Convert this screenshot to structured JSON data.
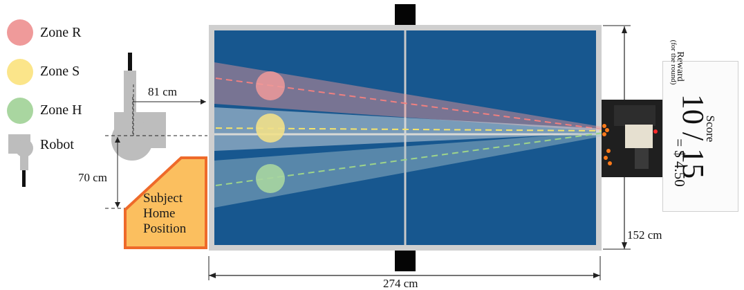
{
  "legend": {
    "items": [
      {
        "label": "Zone R",
        "color": "#ef9a9a"
      },
      {
        "label": "Zone S",
        "color": "#fbe58a"
      },
      {
        "label": "Zone H",
        "color": "#a9d6a0"
      },
      {
        "label": "Robot",
        "icon": "robot-icon"
      }
    ]
  },
  "dimensions": {
    "table_length": "274 cm",
    "table_width": "152 cm",
    "robot_distance": "81 cm",
    "robot_offset": "70 cm"
  },
  "home_position": {
    "label_line1": "Subject",
    "label_line2": "Home",
    "label_line3": "Position"
  },
  "score_card": {
    "title": "Score",
    "score": "10 / 15",
    "reward_label": "Reward",
    "reward_sub": "(for the round)",
    "reward_value": "= $ 4.50"
  },
  "colors": {
    "table": "#17578f",
    "table_border": "#cfcfcf",
    "zone_r": "#ef9a9a",
    "zone_s": "#fbe58a",
    "zone_h": "#a9d6a0",
    "home_fill": "#fbbf5f",
    "home_border": "#ee6a2a"
  }
}
